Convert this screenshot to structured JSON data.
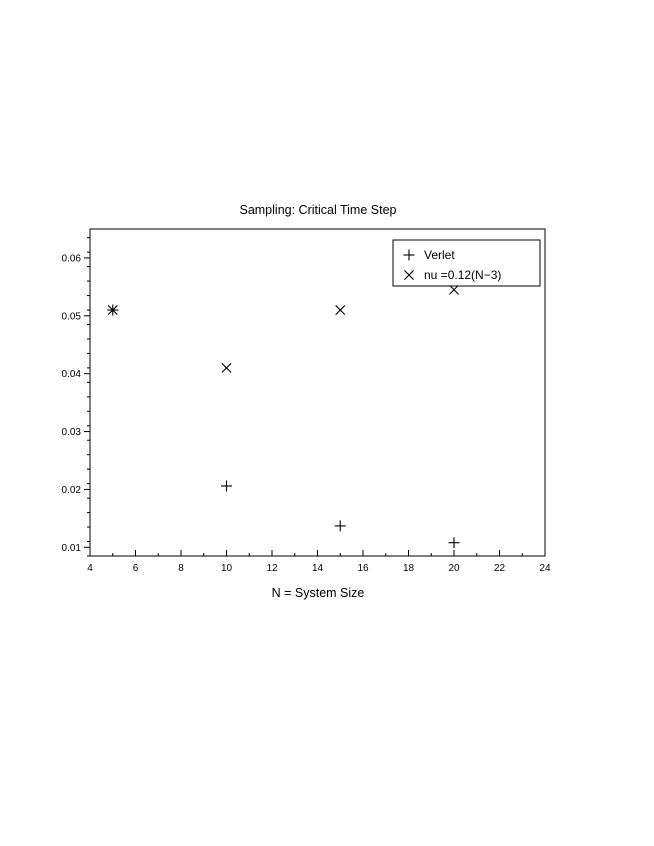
{
  "chart_data": {
    "type": "scatter",
    "title": "Sampling: Critical Time Step",
    "xlabel": "N = System Size",
    "ylabel": "",
    "xlim": [
      4,
      24
    ],
    "ylim": [
      0.0085,
      0.065
    ],
    "xticks": [
      4,
      6,
      8,
      10,
      12,
      14,
      16,
      18,
      20,
      22,
      24
    ],
    "yticks": [
      0.01,
      0.02,
      0.03,
      0.04,
      0.05,
      0.06
    ],
    "ytick_labels": [
      "0.01",
      "0.02",
      "0.03",
      "0.04",
      "0.05",
      "0.06"
    ],
    "grid": false,
    "legend_position": "top-right",
    "series": [
      {
        "name": "Verlet",
        "marker": "plus",
        "color": "#000000",
        "x": [
          5,
          10,
          15,
          20
        ],
        "y": [
          0.051,
          0.0206,
          0.0137,
          0.0108
        ]
      },
      {
        "name": "nu =0.12(N−3)",
        "marker": "x",
        "color": "#000000",
        "x": [
          5,
          10,
          15,
          20
        ],
        "y": [
          0.051,
          0.041,
          0.051,
          0.0545
        ]
      }
    ]
  }
}
